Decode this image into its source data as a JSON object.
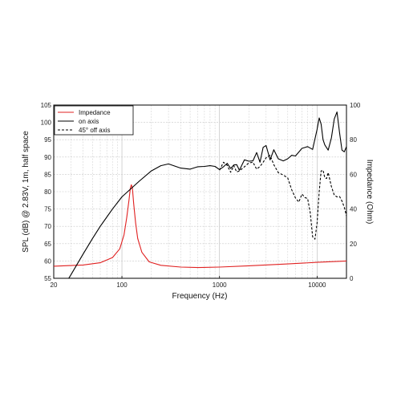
{
  "chart_data": {
    "type": "line",
    "title": "",
    "xlabel": "Frequency (Hz)",
    "ylabel_left": "SPL (dB) @ 2.83V, 1m, half space",
    "ylabel_right": "Impedance (Ohm)",
    "x_scale": "log",
    "xlim": [
      20,
      20000
    ],
    "ylim_left": [
      55,
      105
    ],
    "ylim_right": [
      0,
      100
    ],
    "grid": true,
    "legend_position": "top-left",
    "x_ticks": [
      {
        "value": 20,
        "label": "20"
      },
      {
        "value": 100,
        "label": "100"
      },
      {
        "value": 1000,
        "label": "1000"
      },
      {
        "value": 10000,
        "label": "10000"
      }
    ],
    "y_ticks_left": [
      55,
      60,
      65,
      70,
      75,
      80,
      85,
      90,
      95,
      100,
      105
    ],
    "y_ticks_right": [
      0,
      20,
      40,
      60,
      80,
      100
    ],
    "series": [
      {
        "name": "Impedance",
        "color": "#e02020",
        "dash": "solid",
        "axis": "right",
        "x": [
          20,
          40,
          60,
          80,
          95,
          105,
          112,
          118,
          122,
          125,
          128,
          132,
          138,
          145,
          160,
          190,
          250,
          400,
          600,
          1000,
          2000,
          5000,
          10000,
          20000
        ],
        "y": [
          7,
          7.7,
          9,
          12,
          17,
          25,
          35,
          45,
          52,
          54,
          52,
          43,
          32,
          23,
          15,
          9.5,
          7.5,
          6.5,
          6.2,
          6.5,
          7.2,
          8.3,
          9.2,
          10
        ]
      },
      {
        "name": "on axis",
        "color": "#000000",
        "dash": "solid",
        "axis": "left",
        "x": [
          20,
          30,
          40,
          50,
          60,
          80,
          100,
          150,
          200,
          250,
          300,
          400,
          500,
          600,
          700,
          800,
          900,
          1000,
          1100,
          1200,
          1300,
          1400,
          1500,
          1600,
          1800,
          2000,
          2200,
          2400,
          2600,
          2800,
          3000,
          3300,
          3600,
          4000,
          4500,
          5000,
          5500,
          6000,
          7000,
          8000,
          9000,
          10000,
          10500,
          11000,
          11500,
          12000,
          13000,
          14000,
          15000,
          16000,
          17000,
          18000,
          19000,
          20000
        ],
        "y": [
          48,
          56,
          62,
          66.5,
          70,
          75,
          78.5,
          83,
          86,
          87.5,
          88,
          86.8,
          86.5,
          87.2,
          87.3,
          87.5,
          87.3,
          86.4,
          87.2,
          88.2,
          86.7,
          87.7,
          87.8,
          86.2,
          89.2,
          88.8,
          88.9,
          91.3,
          88.5,
          92.8,
          93.3,
          89.2,
          92.1,
          89.5,
          88.9,
          89.5,
          90.5,
          90.3,
          92.5,
          93,
          92.2,
          98,
          101.3,
          99.5,
          95,
          93.5,
          92,
          95.5,
          101,
          103,
          97,
          92,
          91.5,
          93
        ]
      },
      {
        "name": "45° off axis",
        "color": "#000000",
        "dash": "dashed",
        "axis": "left",
        "x": [
          1000,
          1100,
          1200,
          1300,
          1400,
          1500,
          1600,
          1800,
          2000,
          2200,
          2400,
          2600,
          2800,
          3000,
          3300,
          3600,
          4000,
          4500,
          5000,
          5500,
          6000,
          6500,
          7000,
          7500,
          8000,
          8500,
          9000,
          9500,
          10000,
          10500,
          11000,
          11500,
          12000,
          12500,
          13000,
          14000,
          15000,
          16000,
          17000,
          18000,
          19000,
          20000
        ],
        "y": [
          86.2,
          88.5,
          87.6,
          85.6,
          87.5,
          85.7,
          86,
          87.2,
          88.3,
          88.5,
          86.5,
          87.3,
          88.5,
          89.8,
          90.5,
          87.8,
          85.5,
          84.8,
          84,
          80.5,
          78.2,
          77,
          79.3,
          78.3,
          78,
          74,
          67,
          66.3,
          71,
          80,
          86,
          86.2,
          84,
          83.8,
          85.5,
          81.5,
          79,
          78.5,
          78.6,
          77.3,
          75.5,
          73
        ]
      }
    ]
  }
}
